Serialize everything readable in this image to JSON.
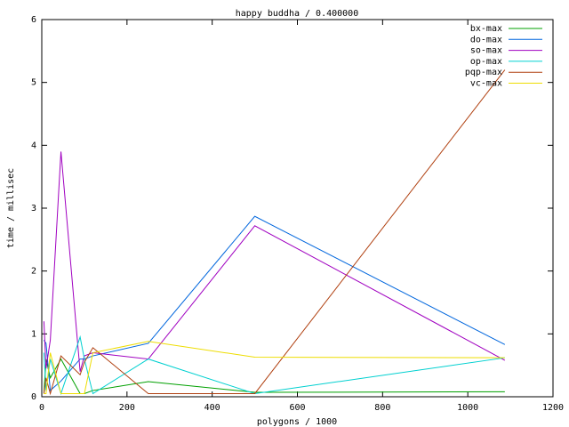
{
  "chart_data": {
    "type": "line",
    "title": "happy buddha / 0.400000",
    "x_label": "polygons / 1000",
    "y_label": "time / millisec",
    "x": [
      5,
      10,
      20,
      45,
      90,
      100,
      120,
      250,
      500,
      1087
    ],
    "xlim": [
      0,
      1200
    ],
    "xticks": [
      0,
      200,
      400,
      600,
      800,
      1000,
      1200
    ],
    "ylim": [
      0,
      6
    ],
    "yticks": [
      0,
      1,
      2,
      3,
      4,
      5,
      6
    ],
    "legend": "upper right",
    "series": [
      {
        "name": "bx-max",
        "color": "#00a000",
        "values": [
          0.05,
          0.6,
          0.3,
          0.6,
          0.05,
          0.05,
          0.1,
          0.24,
          0.07,
          0.08
        ]
      },
      {
        "name": "do-max",
        "color": "#0066dd",
        "values": [
          0.9,
          0.85,
          0.1,
          0.25,
          0.6,
          0.6,
          0.65,
          0.85,
          2.87,
          0.83
        ]
      },
      {
        "name": "so-max",
        "color": "#a000c0",
        "values": [
          1.2,
          0.45,
          0.9,
          3.9,
          0.4,
          0.65,
          0.7,
          0.6,
          2.72,
          0.58
        ]
      },
      {
        "name": "op-max",
        "color": "#00d0d0",
        "values": [
          0.7,
          0.1,
          0.6,
          0.05,
          0.95,
          0.6,
          0.05,
          0.6,
          0.05,
          0.62
        ]
      },
      {
        "name": "pqp-max",
        "color": "#b04010",
        "values": [
          0.05,
          0.3,
          0.05,
          0.65,
          0.35,
          0.55,
          0.78,
          0.05,
          0.05,
          5.2
        ]
      },
      {
        "name": "vc-max",
        "color": "#eedd00",
        "values": [
          0.05,
          0.05,
          0.7,
          0.05,
          0.05,
          0.05,
          0.7,
          0.88,
          0.63,
          0.62
        ]
      }
    ]
  }
}
